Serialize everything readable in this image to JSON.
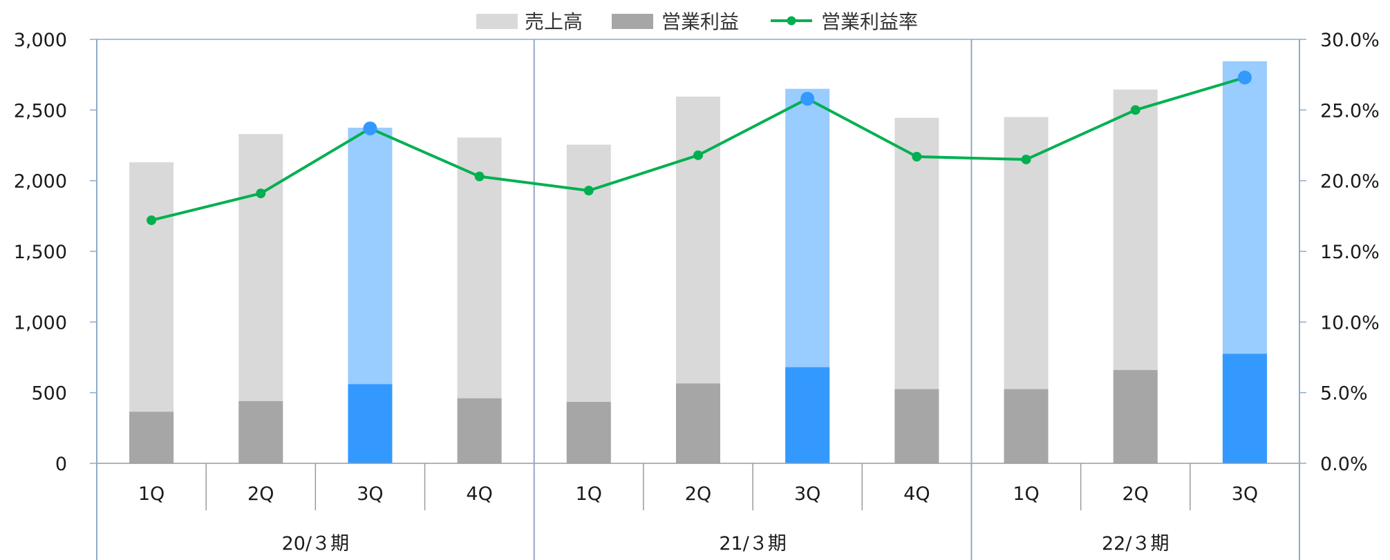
{
  "chart_data": {
    "type": "bar",
    "title": "",
    "legend": {
      "position": "top-center",
      "items": [
        {
          "label": "売上高",
          "type": "bar"
        },
        {
          "label": "営業利益",
          "type": "bar"
        },
        {
          "label": "営業利益率",
          "type": "line"
        }
      ]
    },
    "categories": [
      "1Q",
      "2Q",
      "3Q",
      "4Q",
      "1Q",
      "2Q",
      "3Q",
      "4Q",
      "1Q",
      "2Q",
      "3Q"
    ],
    "groups": [
      {
        "label": "20/３期",
        "count": 4
      },
      {
        "label": "21/３期",
        "count": 4
      },
      {
        "label": "22/３期",
        "count": 3
      }
    ],
    "highlight_index": [
      2,
      6,
      10
    ],
    "series": [
      {
        "name": "売上高",
        "type": "bar",
        "axis": "left",
        "values": [
          2130,
          2330,
          2375,
          2305,
          2255,
          2595,
          2650,
          2445,
          2450,
          2645,
          2845
        ]
      },
      {
        "name": "営業利益",
        "type": "bar",
        "axis": "left",
        "values": [
          365,
          440,
          560,
          460,
          435,
          565,
          680,
          525,
          525,
          660,
          775
        ]
      },
      {
        "name": "営業利益率",
        "type": "line",
        "axis": "right",
        "values": [
          17.2,
          19.1,
          23.7,
          20.3,
          19.3,
          21.8,
          25.8,
          21.7,
          21.5,
          25.0,
          27.3
        ]
      }
    ],
    "y_left": {
      "min": 0,
      "max": 3000,
      "ticks": [
        "0",
        "500",
        "1,000",
        "1,500",
        "2,000",
        "2,500",
        "3,000"
      ]
    },
    "y_right": {
      "min": 0,
      "max": 30,
      "ticks": [
        "0.0%",
        "5.0%",
        "10.0%",
        "15.0%",
        "20.0%",
        "25.0%",
        "30.0%"
      ]
    },
    "colors": {
      "sales": "#d9d9d9",
      "profit": "#a6a6a6",
      "sales_highlight": "#99ccff",
      "profit_highlight": "#3399ff",
      "line": "#00b050",
      "marker_highlight": "#3399ff",
      "frame": "#8ea9c8"
    }
  }
}
